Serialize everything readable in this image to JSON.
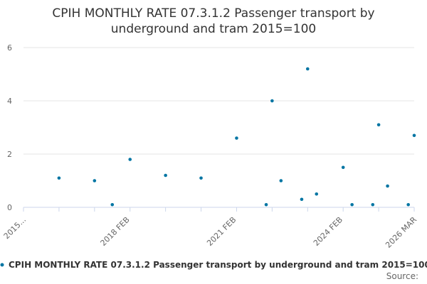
{
  "colors": {
    "series": "#0075a3",
    "gridline": "#e6e6e6",
    "axis": "#ccd6eb",
    "text": "#333333",
    "muted": "#666666"
  },
  "chart_data": {
    "type": "scatter",
    "title_lines": [
      "CPIH MONTHLY RATE 07.3.1.2 Passenger transport by",
      "underground and tram 2015=100"
    ],
    "source_label": "Source:",
    "xlabel": "",
    "ylabel": "",
    "ylim": [
      0,
      6
    ],
    "y_ticks": [
      0,
      2,
      4,
      6
    ],
    "x_ticks": [
      {
        "label": "2015...",
        "x": "2015 MAR"
      },
      {
        "label": "2018 FEB",
        "x": "2018 FEB"
      },
      {
        "label": "2021 FEB",
        "x": "2021 FEB"
      },
      {
        "label": "2024 FEB",
        "x": "2024 FEB"
      },
      {
        "label": "2026 MAR",
        "x": "2026 MAR"
      }
    ],
    "grid": {
      "horizontal": true,
      "vertical": false
    },
    "legend_position": "bottom",
    "series": [
      {
        "name": "CPIH MONTHLY RATE 07.3.1.2 Passenger transport by underground and tram 2015=100",
        "points": [
          {
            "x": "2016 MAR",
            "y": 1.1
          },
          {
            "x": "2017 MAR",
            "y": 1.0
          },
          {
            "x": "2017 SEP",
            "y": 0.1
          },
          {
            "x": "2018 MAR",
            "y": 1.8
          },
          {
            "x": "2019 MAR",
            "y": 1.2
          },
          {
            "x": "2020 MAR",
            "y": 1.1
          },
          {
            "x": "2021 MAR",
            "y": 2.6
          },
          {
            "x": "2022 JAN",
            "y": 0.1
          },
          {
            "x": "2022 MAR",
            "y": 4.0
          },
          {
            "x": "2022 JUN",
            "y": 1.0
          },
          {
            "x": "2023 JAN",
            "y": 0.3
          },
          {
            "x": "2023 MAR",
            "y": 5.2
          },
          {
            "x": "2023 JUN",
            "y": 0.5
          },
          {
            "x": "2024 MAR",
            "y": 1.5
          },
          {
            "x": "2024 JUN",
            "y": 0.1
          },
          {
            "x": "2025 JAN",
            "y": 0.1
          },
          {
            "x": "2025 MAR",
            "y": 3.1
          },
          {
            "x": "2025 JUN",
            "y": 0.8
          },
          {
            "x": "2026 JAN",
            "y": 0.1
          },
          {
            "x": "2026 MAR",
            "y": 2.7
          }
        ]
      }
    ]
  }
}
